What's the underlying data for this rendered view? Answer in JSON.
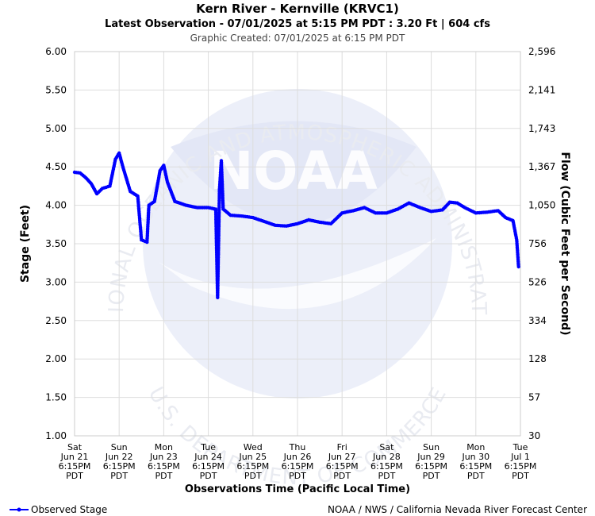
{
  "header": {
    "title": "Kern River - Kernville (KRVC1)",
    "subtitle": "Latest Observation - 07/01/2025 at 5:15 PM PDT : 3.20 Ft | 604 cfs",
    "created": "Graphic Created: 07/01/2025 at 6:15 PM PDT"
  },
  "footer": {
    "legend_label": "Observed Stage",
    "credit": "NOAA / NWS / California Nevada River Forecast Center"
  },
  "watermark": {
    "logo_text": "NOAA",
    "ring_top": "NATIONAL OCEANIC AND ATMOSPHERIC ADMINISTRATION",
    "ring_bottom": "U.S. DEPARTMENT OF COMMERCE"
  },
  "colors": {
    "series": "#0000ff",
    "grid": "#dddddd",
    "watermark": "#e8ecf8"
  },
  "chart_data": {
    "type": "line",
    "xlabel": "Observations Time (Pacific Local Time)",
    "ylabel": "Stage (Feet)",
    "y2label": "Flow (Cubic Feet per Second)",
    "ylim": [
      1.0,
      6.0
    ],
    "grid": true,
    "y_ticks": [
      "1.00",
      "1.50",
      "2.00",
      "2.50",
      "3.00",
      "3.50",
      "4.00",
      "4.50",
      "5.00",
      "5.50",
      "6.00"
    ],
    "y2_ticks": [
      "30",
      "57",
      "128",
      "334",
      "526",
      "756",
      "1,050",
      "1,367",
      "1,743",
      "2,141",
      "2,596"
    ],
    "x_ticks": [
      {
        "day": "Sat",
        "date": "Jun 21",
        "time": "6:15PM",
        "tz": "PDT"
      },
      {
        "day": "Sun",
        "date": "Jun 22",
        "time": "6:15PM",
        "tz": "PDT"
      },
      {
        "day": "Mon",
        "date": "Jun 23",
        "time": "6:15PM",
        "tz": "PDT"
      },
      {
        "day": "Tue",
        "date": "Jun 24",
        "time": "6:15PM",
        "tz": "PDT"
      },
      {
        "day": "Wed",
        "date": "Jun 25",
        "time": "6:15PM",
        "tz": "PDT"
      },
      {
        "day": "Thu",
        "date": "Jun 26",
        "time": "6:15PM",
        "tz": "PDT"
      },
      {
        "day": "Fri",
        "date": "Jun 27",
        "time": "6:15PM",
        "tz": "PDT"
      },
      {
        "day": "Sat",
        "date": "Jun 28",
        "time": "6:15PM",
        "tz": "PDT"
      },
      {
        "day": "Sun",
        "date": "Jun 29",
        "time": "6:15PM",
        "tz": "PDT"
      },
      {
        "day": "Mon",
        "date": "Jun 30",
        "time": "6:15PM",
        "tz": "PDT"
      },
      {
        "day": "Tue",
        "date": "Jul 1",
        "time": "6:15PM",
        "tz": "PDT"
      }
    ],
    "series": [
      {
        "name": "Observed Stage",
        "points": [
          [
            "2025-06-21 18:15",
            4.43
          ],
          [
            "2025-06-21 21:15",
            4.42
          ],
          [
            "2025-06-22 00:15",
            4.36
          ],
          [
            "2025-06-22 03:15",
            4.28
          ],
          [
            "2025-06-22 06:15",
            4.15
          ],
          [
            "2025-06-22 09:15",
            4.22
          ],
          [
            "2025-06-22 13:15",
            4.25
          ],
          [
            "2025-06-22 16:15",
            4.6
          ],
          [
            "2025-06-22 18:15",
            4.68
          ],
          [
            "2025-06-22 20:15",
            4.5
          ],
          [
            "2025-06-23 00:15",
            4.18
          ],
          [
            "2025-06-23 04:15",
            4.12
          ],
          [
            "2025-06-23 06:15",
            3.55
          ],
          [
            "2025-06-23 09:15",
            3.52
          ],
          [
            "2025-06-23 10:15",
            4.0
          ],
          [
            "2025-06-23 13:15",
            4.05
          ],
          [
            "2025-06-23 16:15",
            4.45
          ],
          [
            "2025-06-23 18:15",
            4.52
          ],
          [
            "2025-06-23 20:15",
            4.3
          ],
          [
            "2025-06-24 00:15",
            4.05
          ],
          [
            "2025-06-24 06:15",
            4.0
          ],
          [
            "2025-06-24 12:15",
            3.97
          ],
          [
            "2025-06-24 18:15",
            3.97
          ],
          [
            "2025-06-24 22:15",
            3.95
          ],
          [
            "2025-06-24 23:15",
            2.8
          ],
          [
            "2025-06-25 00:15",
            4.2
          ],
          [
            "2025-06-25 01:15",
            4.58
          ],
          [
            "2025-06-25 02:15",
            3.95
          ],
          [
            "2025-06-25 06:15",
            3.87
          ],
          [
            "2025-06-25 12:15",
            3.86
          ],
          [
            "2025-06-25 18:15",
            3.84
          ],
          [
            "2025-06-26 00:15",
            3.79
          ],
          [
            "2025-06-26 06:15",
            3.74
          ],
          [
            "2025-06-26 12:15",
            3.73
          ],
          [
            "2025-06-26 18:15",
            3.76
          ],
          [
            "2025-06-27 00:15",
            3.81
          ],
          [
            "2025-06-27 06:15",
            3.78
          ],
          [
            "2025-06-27 12:15",
            3.76
          ],
          [
            "2025-06-27 18:15",
            3.9
          ],
          [
            "2025-06-28 00:15",
            3.93
          ],
          [
            "2025-06-28 06:15",
            3.97
          ],
          [
            "2025-06-28 12:15",
            3.9
          ],
          [
            "2025-06-28 18:15",
            3.9
          ],
          [
            "2025-06-29 00:15",
            3.95
          ],
          [
            "2025-06-29 06:15",
            4.03
          ],
          [
            "2025-06-29 12:15",
            3.97
          ],
          [
            "2025-06-29 18:15",
            3.92
          ],
          [
            "2025-06-30 00:15",
            3.94
          ],
          [
            "2025-06-30 04:15",
            4.04
          ],
          [
            "2025-06-30 08:15",
            4.03
          ],
          [
            "2025-06-30 12:15",
            3.97
          ],
          [
            "2025-06-30 18:15",
            3.9
          ],
          [
            "2025-07-01 00:15",
            3.91
          ],
          [
            "2025-07-01 06:15",
            3.93
          ],
          [
            "2025-07-01 10:15",
            3.84
          ],
          [
            "2025-07-01 14:15",
            3.8
          ],
          [
            "2025-07-01 16:15",
            3.55
          ],
          [
            "2025-07-01 17:15",
            3.2
          ]
        ]
      }
    ]
  }
}
